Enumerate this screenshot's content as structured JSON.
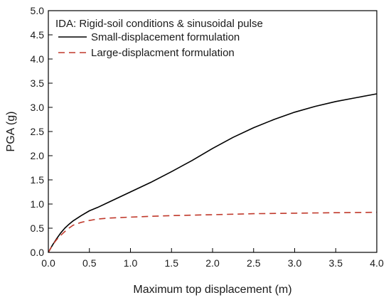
{
  "chart_data": {
    "type": "line",
    "title": "",
    "legend_title": "IDA: Rigid-soil conditions & sinusoidal pulse",
    "xlabel": "Maximum top displacement (m)",
    "ylabel": "PGA (g)",
    "xlim": [
      0.0,
      4.0
    ],
    "ylim": [
      0.0,
      5.0
    ],
    "xticks": [
      "0.0",
      "0.5",
      "1.0",
      "1.5",
      "2.0",
      "2.5",
      "3.0",
      "3.5",
      "4.0"
    ],
    "yticks": [
      "0.0",
      "0.5",
      "1.0",
      "1.5",
      "2.0",
      "2.5",
      "3.0",
      "3.5",
      "4.0",
      "4.5",
      "5.0"
    ],
    "grid": false,
    "legend_position": "top-left",
    "series": [
      {
        "name": "Small-displacement formulation",
        "style": "solid",
        "color": "#000000",
        "x": [
          0.0,
          0.05,
          0.1,
          0.15,
          0.2,
          0.25,
          0.3,
          0.4,
          0.5,
          0.6,
          0.75,
          1.0,
          1.25,
          1.5,
          1.75,
          2.0,
          2.25,
          2.5,
          2.75,
          3.0,
          3.25,
          3.5,
          3.75,
          4.0
        ],
        "y": [
          0.0,
          0.15,
          0.28,
          0.4,
          0.5,
          0.58,
          0.65,
          0.76,
          0.86,
          0.93,
          1.05,
          1.25,
          1.45,
          1.67,
          1.9,
          2.15,
          2.38,
          2.58,
          2.75,
          2.9,
          3.02,
          3.12,
          3.2,
          3.28
        ]
      },
      {
        "name": "Large-displacment formulation",
        "style": "dashed",
        "color": "#c0392b",
        "x": [
          0.0,
          0.05,
          0.1,
          0.15,
          0.2,
          0.25,
          0.3,
          0.4,
          0.5,
          0.6,
          0.75,
          1.0,
          1.25,
          1.5,
          2.0,
          2.5,
          3.0,
          3.5,
          4.0
        ],
        "y": [
          0.0,
          0.15,
          0.26,
          0.35,
          0.43,
          0.5,
          0.56,
          0.62,
          0.66,
          0.69,
          0.71,
          0.73,
          0.745,
          0.76,
          0.78,
          0.8,
          0.81,
          0.82,
          0.83
        ]
      }
    ]
  }
}
